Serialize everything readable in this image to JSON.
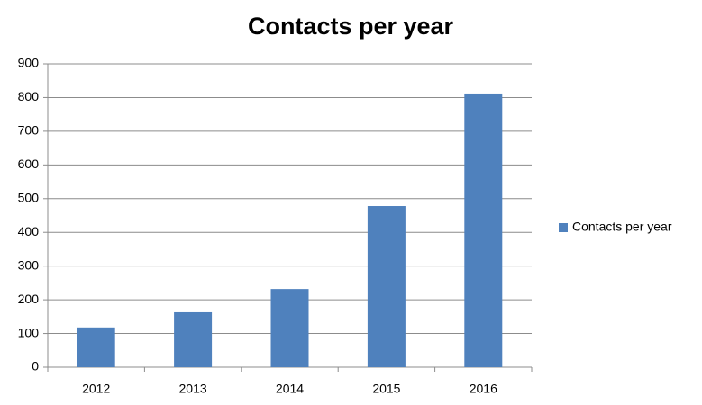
{
  "chart_data": {
    "type": "bar",
    "title": "Contacts per year",
    "categories": [
      "2012",
      "2013",
      "2014",
      "2015",
      "2016"
    ],
    "series": [
      {
        "name": "Contacts per year",
        "color": "#4f81bd",
        "values": [
          118,
          163,
          232,
          478,
          812
        ]
      }
    ],
    "ylim": [
      0,
      900
    ],
    "yticks": [
      0,
      100,
      200,
      300,
      400,
      500,
      600,
      700,
      800,
      900
    ],
    "grid": true,
    "legend": "right"
  }
}
